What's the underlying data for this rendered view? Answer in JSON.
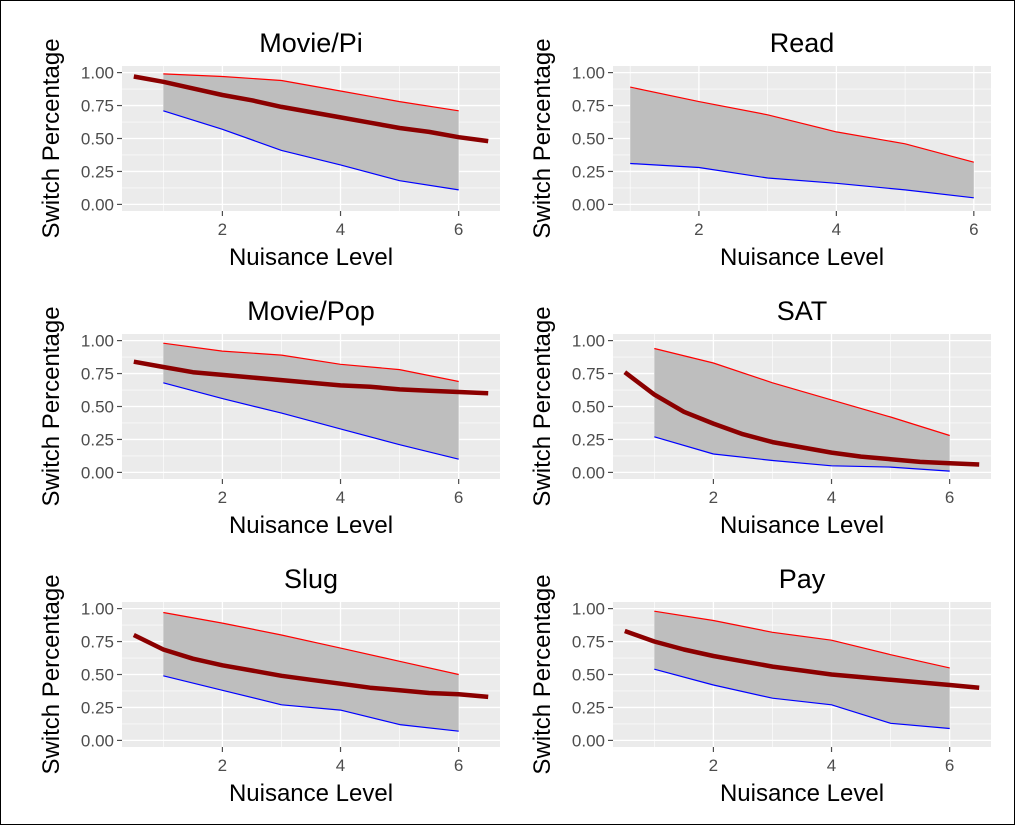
{
  "style": {
    "panel_bg": "#ebebeb",
    "grid_major": "#ffffff",
    "tick_color": "#4d4d4d",
    "band_fill": "#bebebe",
    "upper_line": "#ff0000",
    "lower_line": "#0000ff",
    "fit_line": "#8b0000"
  },
  "chart_data": [
    {
      "type": "area",
      "title": "Movie/Pi",
      "xlabel": "Nuisance Level",
      "ylabel": "Switch Percentage",
      "xlim": [
        0.3,
        6.7
      ],
      "ylim": [
        -0.05,
        1.05
      ],
      "x_ticks": [
        2,
        4,
        6
      ],
      "y_ticks": [
        0,
        0.25,
        0.5,
        0.75,
        1
      ],
      "x_tick_labels": [
        "2",
        "4",
        "6"
      ],
      "y_tick_labels": [
        "0.00",
        "0.25",
        "0.50",
        "0.75",
        "1.00"
      ],
      "grid": true,
      "series": [
        {
          "role": "upper",
          "x": [
            1,
            2,
            3,
            4,
            5,
            6
          ],
          "y": [
            0.99,
            0.97,
            0.94,
            0.86,
            0.78,
            0.71
          ]
        },
        {
          "role": "lower",
          "x": [
            1,
            2,
            3,
            4,
            5,
            6
          ],
          "y": [
            0.71,
            0.57,
            0.41,
            0.3,
            0.18,
            0.11
          ]
        },
        {
          "role": "fit",
          "x": [
            0.5,
            1,
            1.5,
            2,
            2.5,
            3,
            3.5,
            4,
            4.5,
            5,
            5.5,
            6,
            6.5
          ],
          "y": [
            0.97,
            0.93,
            0.88,
            0.83,
            0.79,
            0.74,
            0.7,
            0.66,
            0.62,
            0.58,
            0.55,
            0.51,
            0.48
          ]
        }
      ]
    },
    {
      "type": "area",
      "title": "Read",
      "xlabel": "Nuisance Level",
      "ylabel": "Switch Percentage",
      "xlim": [
        0.75,
        6.25
      ],
      "ylim": [
        -0.05,
        1.05
      ],
      "x_ticks": [
        2,
        4,
        6
      ],
      "y_ticks": [
        0,
        0.25,
        0.5,
        0.75,
        1
      ],
      "x_tick_labels": [
        "2",
        "4",
        "6"
      ],
      "y_tick_labels": [
        "0.00",
        "0.25",
        "0.50",
        "0.75",
        "1.00"
      ],
      "grid": true,
      "series": [
        {
          "role": "upper",
          "x": [
            1,
            2,
            3,
            4,
            5,
            6
          ],
          "y": [
            0.89,
            0.78,
            0.68,
            0.55,
            0.46,
            0.32
          ]
        },
        {
          "role": "lower",
          "x": [
            1,
            2,
            3,
            4,
            5,
            6
          ],
          "y": [
            0.31,
            0.28,
            0.2,
            0.16,
            0.11,
            0.05
          ]
        }
      ]
    },
    {
      "type": "area",
      "title": "Movie/Pop",
      "xlabel": "Nuisance Level",
      "ylabel": "Switch Percentage",
      "xlim": [
        0.3,
        6.7
      ],
      "ylim": [
        -0.05,
        1.05
      ],
      "x_ticks": [
        2,
        4,
        6
      ],
      "y_ticks": [
        0,
        0.25,
        0.5,
        0.75,
        1
      ],
      "x_tick_labels": [
        "2",
        "4",
        "6"
      ],
      "y_tick_labels": [
        "0.00",
        "0.25",
        "0.50",
        "0.75",
        "1.00"
      ],
      "grid": true,
      "series": [
        {
          "role": "upper",
          "x": [
            1,
            2,
            3,
            4,
            5,
            6
          ],
          "y": [
            0.98,
            0.92,
            0.89,
            0.82,
            0.78,
            0.69
          ]
        },
        {
          "role": "lower",
          "x": [
            1,
            2,
            3,
            4,
            5,
            6
          ],
          "y": [
            0.68,
            0.56,
            0.45,
            0.33,
            0.21,
            0.1
          ]
        },
        {
          "role": "fit",
          "x": [
            0.5,
            1,
            1.5,
            2,
            2.5,
            3,
            3.5,
            4,
            4.5,
            5,
            5.5,
            6,
            6.5
          ],
          "y": [
            0.84,
            0.8,
            0.76,
            0.74,
            0.72,
            0.7,
            0.68,
            0.66,
            0.65,
            0.63,
            0.62,
            0.61,
            0.6
          ]
        }
      ]
    },
    {
      "type": "area",
      "title": "SAT",
      "xlabel": "Nuisance Level",
      "ylabel": "Switch Percentage",
      "xlim": [
        0.3,
        6.7
      ],
      "ylim": [
        -0.05,
        1.05
      ],
      "x_ticks": [
        2,
        4,
        6
      ],
      "y_ticks": [
        0,
        0.25,
        0.5,
        0.75,
        1
      ],
      "x_tick_labels": [
        "2",
        "4",
        "6"
      ],
      "y_tick_labels": [
        "0.00",
        "0.25",
        "0.50",
        "0.75",
        "1.00"
      ],
      "grid": true,
      "series": [
        {
          "role": "upper",
          "x": [
            1,
            2,
            3,
            4,
            5,
            6
          ],
          "y": [
            0.94,
            0.83,
            0.68,
            0.55,
            0.42,
            0.28
          ]
        },
        {
          "role": "lower",
          "x": [
            1,
            2,
            3,
            4,
            5,
            6
          ],
          "y": [
            0.27,
            0.14,
            0.09,
            0.05,
            0.04,
            0.01
          ]
        },
        {
          "role": "fit",
          "x": [
            0.5,
            1,
            1.5,
            2,
            2.5,
            3,
            3.5,
            4,
            4.5,
            5,
            5.5,
            6,
            6.5
          ],
          "y": [
            0.76,
            0.59,
            0.46,
            0.37,
            0.29,
            0.23,
            0.19,
            0.15,
            0.12,
            0.1,
            0.08,
            0.07,
            0.06
          ]
        }
      ]
    },
    {
      "type": "area",
      "title": "Slug",
      "xlabel": "Nuisance Level",
      "ylabel": "Switch Percentage",
      "xlim": [
        0.3,
        6.7
      ],
      "ylim": [
        -0.05,
        1.05
      ],
      "x_ticks": [
        2,
        4,
        6
      ],
      "y_ticks": [
        0,
        0.25,
        0.5,
        0.75,
        1
      ],
      "x_tick_labels": [
        "2",
        "4",
        "6"
      ],
      "y_tick_labels": [
        "0.00",
        "0.25",
        "0.50",
        "0.75",
        "1.00"
      ],
      "grid": true,
      "series": [
        {
          "role": "upper",
          "x": [
            1,
            2,
            3,
            4,
            5,
            6
          ],
          "y": [
            0.97,
            0.89,
            0.8,
            0.7,
            0.6,
            0.5
          ]
        },
        {
          "role": "lower",
          "x": [
            1,
            2,
            3,
            4,
            5,
            6
          ],
          "y": [
            0.49,
            0.38,
            0.27,
            0.23,
            0.12,
            0.07
          ]
        },
        {
          "role": "fit",
          "x": [
            0.5,
            1,
            1.5,
            2,
            2.5,
            3,
            3.5,
            4,
            4.5,
            5,
            5.5,
            6,
            6.5
          ],
          "y": [
            0.8,
            0.69,
            0.62,
            0.57,
            0.53,
            0.49,
            0.46,
            0.43,
            0.4,
            0.38,
            0.36,
            0.35,
            0.33
          ]
        }
      ]
    },
    {
      "type": "area",
      "title": "Pay",
      "xlabel": "Nuisance Level",
      "ylabel": "Switch Percentage",
      "xlim": [
        0.3,
        6.7
      ],
      "ylim": [
        -0.05,
        1.05
      ],
      "x_ticks": [
        2,
        4,
        6
      ],
      "y_ticks": [
        0,
        0.25,
        0.5,
        0.75,
        1
      ],
      "x_tick_labels": [
        "2",
        "4",
        "6"
      ],
      "y_tick_labels": [
        "0.00",
        "0.25",
        "0.50",
        "0.75",
        "1.00"
      ],
      "grid": true,
      "series": [
        {
          "role": "upper",
          "x": [
            1,
            2,
            3,
            4,
            5,
            6
          ],
          "y": [
            0.98,
            0.91,
            0.82,
            0.76,
            0.65,
            0.55
          ]
        },
        {
          "role": "lower",
          "x": [
            1,
            2,
            3,
            4,
            5,
            6
          ],
          "y": [
            0.54,
            0.42,
            0.32,
            0.27,
            0.13,
            0.09
          ]
        },
        {
          "role": "fit",
          "x": [
            0.5,
            1,
            1.5,
            2,
            2.5,
            3,
            3.5,
            4,
            4.5,
            5,
            5.5,
            6,
            6.5
          ],
          "y": [
            0.83,
            0.75,
            0.69,
            0.64,
            0.6,
            0.56,
            0.53,
            0.5,
            0.48,
            0.46,
            0.44,
            0.42,
            0.4
          ]
        }
      ]
    }
  ]
}
